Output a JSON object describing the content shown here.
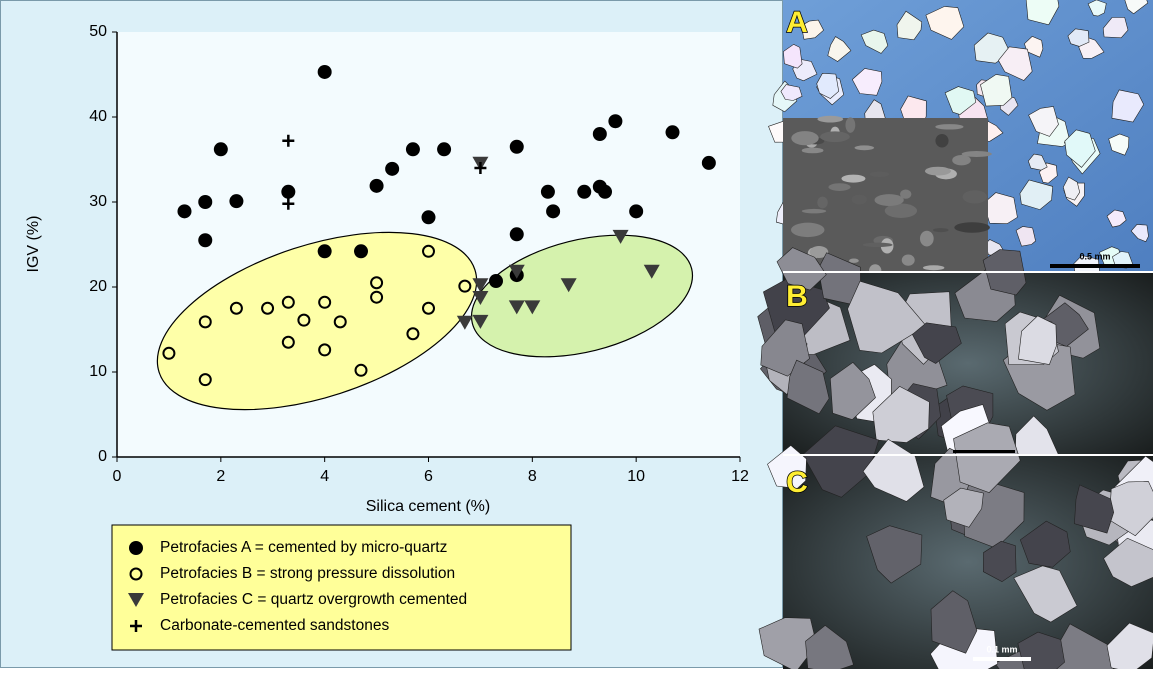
{
  "chart_data": {
    "type": "scatter",
    "xlabel": "Silica cement (%)",
    "ylabel": "IGV (%)",
    "xlim": [
      0,
      12
    ],
    "xticks": [
      0,
      2,
      4,
      6,
      8,
      10,
      12
    ],
    "ylim": [
      0,
      50
    ],
    "yticks": [
      0,
      10,
      20,
      30,
      40,
      50
    ],
    "legend": "bottom-left",
    "series": [
      {
        "name": "Petrofacies A = cemented by micro-quartz",
        "marker": "circle-filled",
        "color": "#000000",
        "x": [
          1.3,
          1.7,
          1.7,
          2.0,
          2.3,
          3.3,
          4.0,
          4.0,
          4.7,
          5.0,
          5.3,
          5.7,
          6.0,
          6.3,
          7.3,
          7.7,
          7.7,
          7.7,
          8.3,
          8.4,
          9.0,
          9.3,
          9.3,
          9.4,
          9.6,
          10.0,
          10.7,
          11.4
        ],
        "values": [
          28.9,
          30.0,
          25.5,
          36.2,
          30.1,
          31.2,
          45.3,
          24.2,
          24.2,
          31.9,
          33.9,
          36.2,
          28.2,
          36.2,
          20.7,
          36.5,
          26.2,
          21.4,
          31.2,
          28.9,
          31.2,
          31.8,
          38.0,
          31.2,
          39.5,
          28.9,
          38.2,
          34.6
        ]
      },
      {
        "name": "Petrofacies B = strong pressure dissolution",
        "marker": "circle-open",
        "color": "#000000",
        "x": [
          1.0,
          1.7,
          1.7,
          2.3,
          2.9,
          3.3,
          3.3,
          3.6,
          4.0,
          4.0,
          4.3,
          4.7,
          5.0,
          5.0,
          5.7,
          6.0,
          6.0,
          6.7
        ],
        "values": [
          12.2,
          9.1,
          15.9,
          17.5,
          17.5,
          18.2,
          13.5,
          16.1,
          18.2,
          12.6,
          15.9,
          10.2,
          20.5,
          18.8,
          14.5,
          24.2,
          17.5,
          20.1
        ]
      },
      {
        "name": "Petrofacies C = quartz overgrowth cemented",
        "marker": "triangle-down",
        "color": "#3a3a3a",
        "x": [
          6.7,
          7.0,
          7.0,
          7.0,
          7.0,
          7.7,
          7.7,
          8.0,
          8.7,
          9.7,
          10.3
        ],
        "values": [
          15.8,
          15.9,
          18.7,
          20.2,
          34.5,
          21.8,
          17.6,
          17.6,
          20.2,
          25.9,
          21.8
        ]
      },
      {
        "name": "Carbonate-cemented sandstones",
        "marker": "plus",
        "color": "#000000",
        "x": [
          3.3,
          3.3,
          7.0
        ],
        "values": [
          37.2,
          29.8,
          34.0
        ]
      }
    ]
  },
  "photos": [
    {
      "label": "A",
      "scale_bar": "0.5 mm"
    },
    {
      "label": "B"
    },
    {
      "label": "C",
      "scale_bar": "0.1 mm"
    }
  ]
}
